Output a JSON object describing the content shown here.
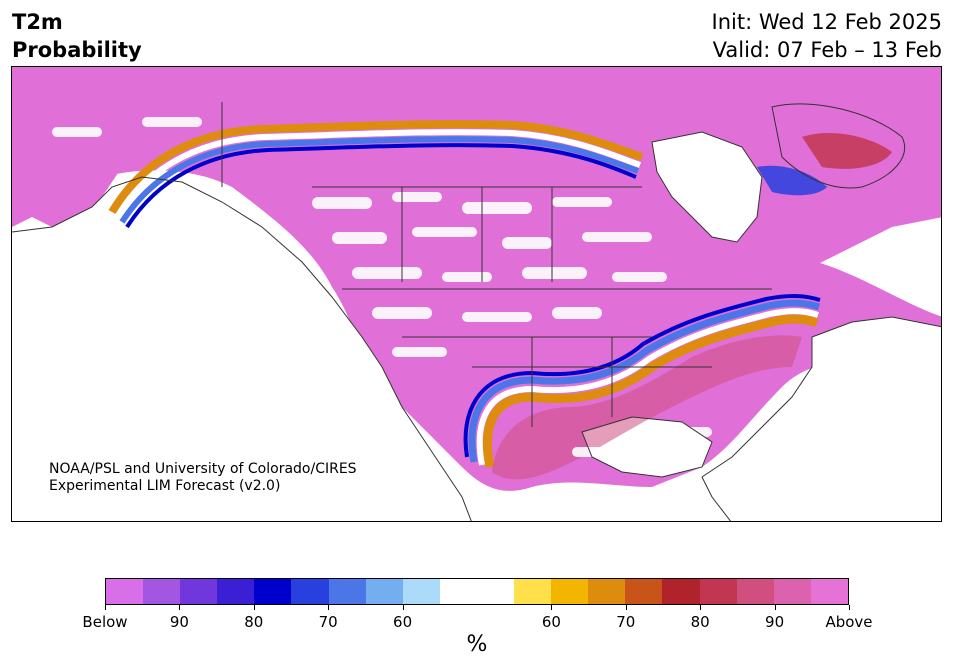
{
  "title": {
    "left_line1": "T2m",
    "left_line2": "Probability",
    "right_line1": "Init: Wed 12 Feb 2025",
    "right_line2": "Valid: 07 Feb – 13 Feb"
  },
  "credit": {
    "line1": "NOAA/PSL and University of Colorado/CIRES",
    "line2": "Experimental LIM Forecast (v2.0)"
  },
  "colorbar": {
    "unit": "%",
    "colors": [
      "#d86ee8",
      "#a356e2",
      "#7037dd",
      "#3a1fd5",
      "#0000cc",
      "#2740de",
      "#4c76e8",
      "#72aef0",
      "#acdaf9",
      "#ffffff",
      "#ffffff",
      "#ffe04a",
      "#f2b600",
      "#dd8c0e",
      "#c8541a",
      "#b0232a",
      "#c23651",
      "#d04f7f",
      "#dd62ad",
      "#e572d6"
    ],
    "tick_labels": [
      "Below",
      "90",
      "80",
      "70",
      "60",
      "60",
      "70",
      "80",
      "90",
      "Above"
    ]
  },
  "colors": {
    "above_magenta": "#e070d8",
    "below_blue": "#0000cc",
    "warm_orange": "#dd8c0e",
    "coast": "#333333"
  }
}
